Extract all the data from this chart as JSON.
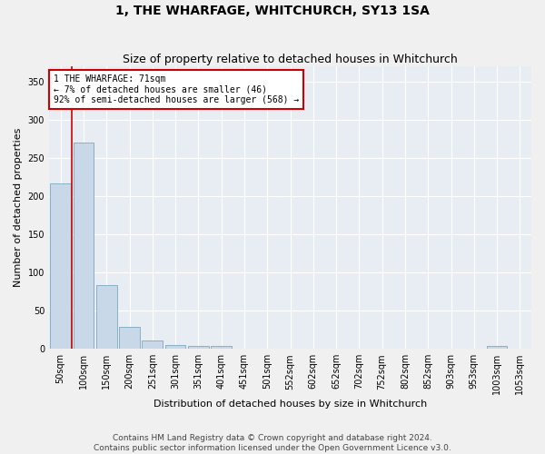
{
  "title": "1, THE WHARFAGE, WHITCHURCH, SY13 1SA",
  "subtitle": "Size of property relative to detached houses in Whitchurch",
  "xlabel": "Distribution of detached houses by size in Whitchurch",
  "ylabel": "Number of detached properties",
  "bar_color": "#c8d8e8",
  "bar_edge_color": "#7aaabe",
  "background_color": "#e8edf4",
  "grid_color": "#ffffff",
  "vline_color": "#cc0000",
  "vline_x": 0.5,
  "annotation_text": "1 THE WHARFAGE: 71sqm\n← 7% of detached houses are smaller (46)\n92% of semi-detached houses are larger (568) →",
  "categories": [
    "50sqm",
    "100sqm",
    "150sqm",
    "200sqm",
    "251sqm",
    "301sqm",
    "351sqm",
    "401sqm",
    "451sqm",
    "501sqm",
    "552sqm",
    "602sqm",
    "652sqm",
    "702sqm",
    "752sqm",
    "802sqm",
    "852sqm",
    "903sqm",
    "953sqm",
    "1003sqm",
    "1053sqm"
  ],
  "values": [
    217,
    270,
    84,
    29,
    11,
    5,
    4,
    4,
    0,
    0,
    0,
    0,
    0,
    0,
    0,
    0,
    0,
    0,
    0,
    4,
    0
  ],
  "ylim": [
    0,
    370
  ],
  "yticks": [
    0,
    50,
    100,
    150,
    200,
    250,
    300,
    350
  ],
  "footnote": "Contains HM Land Registry data © Crown copyright and database right 2024.\nContains public sector information licensed under the Open Government Licence v3.0.",
  "title_fontsize": 10,
  "subtitle_fontsize": 9,
  "xlabel_fontsize": 8,
  "ylabel_fontsize": 8,
  "tick_fontsize": 7,
  "footnote_fontsize": 6.5,
  "annot_fontsize": 7
}
